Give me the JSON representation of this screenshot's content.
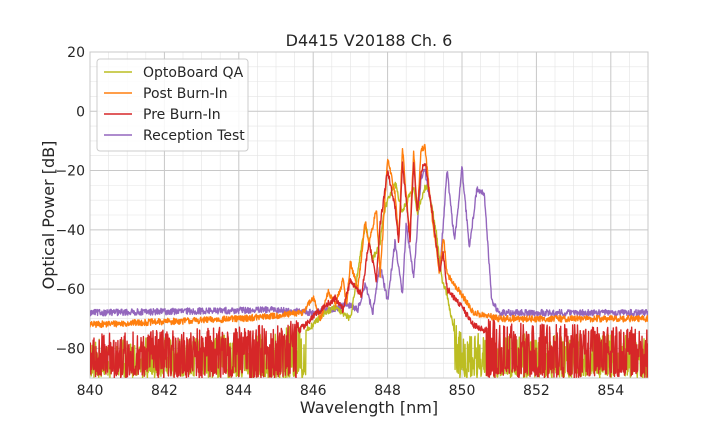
{
  "chart_data": {
    "type": "line",
    "title": "D4415 V20188 Ch. 6",
    "xlabel": "Wavelength [nm]",
    "ylabel": "Optical Power [dB]",
    "xlim": [
      840,
      855
    ],
    "ylim": [
      -90,
      20
    ],
    "xticks": [
      840,
      842,
      844,
      846,
      848,
      850,
      852,
      854
    ],
    "xtick_labels": [
      "840",
      "842",
      "844",
      "846",
      "848",
      "850",
      "852",
      "854"
    ],
    "yticks": [
      20,
      0,
      -20,
      -40,
      -60,
      -80
    ],
    "ytick_labels": [
      "20",
      "0",
      "−20",
      "−40",
      "−60",
      "−80"
    ],
    "grid": true,
    "grid_minor": true,
    "legend_position": "top-left",
    "series": [
      {
        "name": "OptoBoard QA",
        "color": "#bcbd22",
        "noise_floor_db": -90,
        "x": [
          840.0,
          845.0,
          845.6,
          846.0,
          846.3,
          846.6,
          846.8,
          847.0,
          847.1,
          847.3,
          847.4,
          847.6,
          847.8,
          847.9,
          848.0,
          848.2,
          848.4,
          848.6,
          848.7,
          848.8,
          849.0,
          849.1,
          849.3,
          849.45,
          849.6,
          849.8,
          850.0,
          850.3,
          852.0,
          855.0
        ],
        "y": [
          -82,
          -80,
          -76,
          -72,
          -68,
          -66,
          -68,
          -70,
          -62,
          -46,
          -38,
          -50,
          -44,
          -34,
          -30,
          -24,
          -34,
          -28,
          -26,
          -34,
          -26,
          -26,
          -40,
          -56,
          -62,
          -75,
          -80,
          -80,
          -80,
          -80
        ]
      },
      {
        "name": "Post Burn-In",
        "color": "#ff7f0e",
        "x": [
          840.0,
          842.0,
          844.0,
          845.0,
          845.7,
          846.0,
          846.2,
          846.4,
          846.6,
          846.8,
          846.9,
          847.0,
          847.2,
          847.4,
          847.5,
          847.7,
          847.8,
          848.0,
          848.2,
          848.3,
          848.4,
          848.5,
          848.6,
          848.7,
          848.8,
          848.9,
          849.0,
          849.2,
          849.4,
          849.5,
          849.6,
          850.0,
          850.3,
          851.0,
          853.0,
          855.0
        ],
        "y": [
          -72,
          -71,
          -70,
          -69,
          -68,
          -63,
          -70,
          -61,
          -65,
          -57,
          -65,
          -51,
          -60,
          -37,
          -45,
          -33,
          -55,
          -16,
          -28,
          -43,
          -12,
          -28,
          -43,
          -13,
          -35,
          -13,
          -12,
          -36,
          -55,
          -42,
          -55,
          -62,
          -68,
          -70,
          -70,
          -70
        ]
      },
      {
        "name": "Pre Burn-In",
        "color": "#d62728",
        "noise_floor_db": -90,
        "x": [
          840.0,
          845.0,
          845.5,
          845.8,
          846.1,
          846.4,
          846.6,
          846.8,
          847.0,
          847.3,
          847.5,
          847.7,
          847.8,
          848.0,
          848.2,
          848.3,
          848.4,
          848.5,
          848.6,
          848.7,
          848.8,
          848.9,
          849.0,
          849.2,
          849.4,
          849.5,
          849.6,
          850.0,
          850.3,
          851.0,
          855.0
        ],
        "y": [
          -80,
          -77,
          -75,
          -72,
          -68,
          -65,
          -63,
          -67,
          -57,
          -62,
          -44,
          -57,
          -38,
          -20,
          -32,
          -44,
          -18,
          -30,
          -44,
          -18,
          -34,
          -20,
          -17,
          -34,
          -54,
          -48,
          -60,
          -66,
          -72,
          -76,
          -78
        ]
      },
      {
        "name": "Reception Test",
        "color": "#9467bd",
        "x": [
          840.0,
          845.0,
          846.0,
          846.5,
          846.9,
          847.2,
          847.4,
          847.6,
          847.8,
          848.0,
          848.2,
          848.4,
          848.5,
          848.7,
          848.9,
          849.0,
          849.2,
          849.4,
          849.6,
          849.8,
          850.0,
          850.2,
          850.4,
          850.6,
          850.8,
          851.0,
          852.0,
          855.0
        ],
        "y": [
          -68,
          -67,
          -68,
          -67,
          -65,
          -67,
          -58,
          -68,
          -52,
          -64,
          -44,
          -62,
          -38,
          -56,
          -22,
          -20,
          -34,
          -54,
          -20,
          -44,
          -19,
          -46,
          -26,
          -28,
          -64,
          -68,
          -68,
          -68
        ]
      }
    ]
  }
}
